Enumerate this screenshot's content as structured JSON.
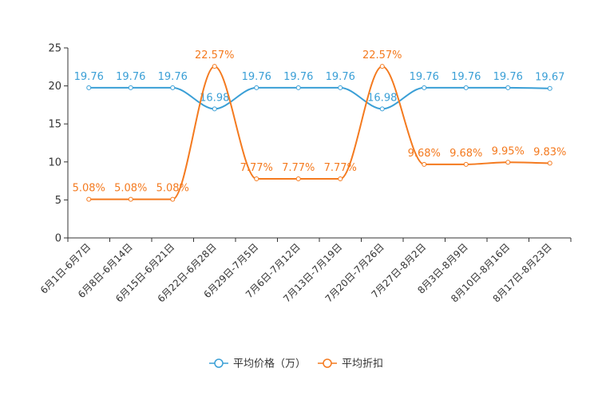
{
  "chart_data": {
    "type": "line",
    "title": "",
    "xlabel": "",
    "ylabel": "",
    "ylim": [
      0,
      25
    ],
    "yticks": [
      0,
      5,
      10,
      15,
      20,
      25
    ],
    "categories": [
      "6月1日-6月7日",
      "6月8日-6月14日",
      "6月15日-6月21日",
      "6月22日-6月28日",
      "6月29日-7月5日",
      "7月6日-7月12日",
      "7月13日-7月19日",
      "7月20日-7月26日",
      "7月27日-8月2日",
      "8月3日-8月9日",
      "8月10日-8月16日",
      "8月17日-8月23日"
    ],
    "series": [
      {
        "name": "平均价格（万）",
        "color": "#3a9fd6",
        "values": [
          19.76,
          19.76,
          19.76,
          16.98,
          19.76,
          19.76,
          19.76,
          16.98,
          19.76,
          19.76,
          19.76,
          19.67
        ],
        "labels": [
          "19.76",
          "19.76",
          "19.76",
          "16.98",
          "19.76",
          "19.76",
          "19.76",
          "16.98",
          "19.76",
          "19.76",
          "19.76",
          "19.67"
        ]
      },
      {
        "name": "平均折扣",
        "color": "#f47a1f",
        "values": [
          5.08,
          5.08,
          5.08,
          22.57,
          7.77,
          7.77,
          7.77,
          22.57,
          9.68,
          9.68,
          9.95,
          9.83
        ],
        "labels": [
          "5.08%",
          "5.08%",
          "5.08%",
          "22.57%",
          "7.77%",
          "7.77%",
          "7.77%",
          "22.57%",
          "9.68%",
          "9.68%",
          "9.95%",
          "9.83%"
        ]
      }
    ],
    "legend": "bottom-center",
    "grid": false
  }
}
